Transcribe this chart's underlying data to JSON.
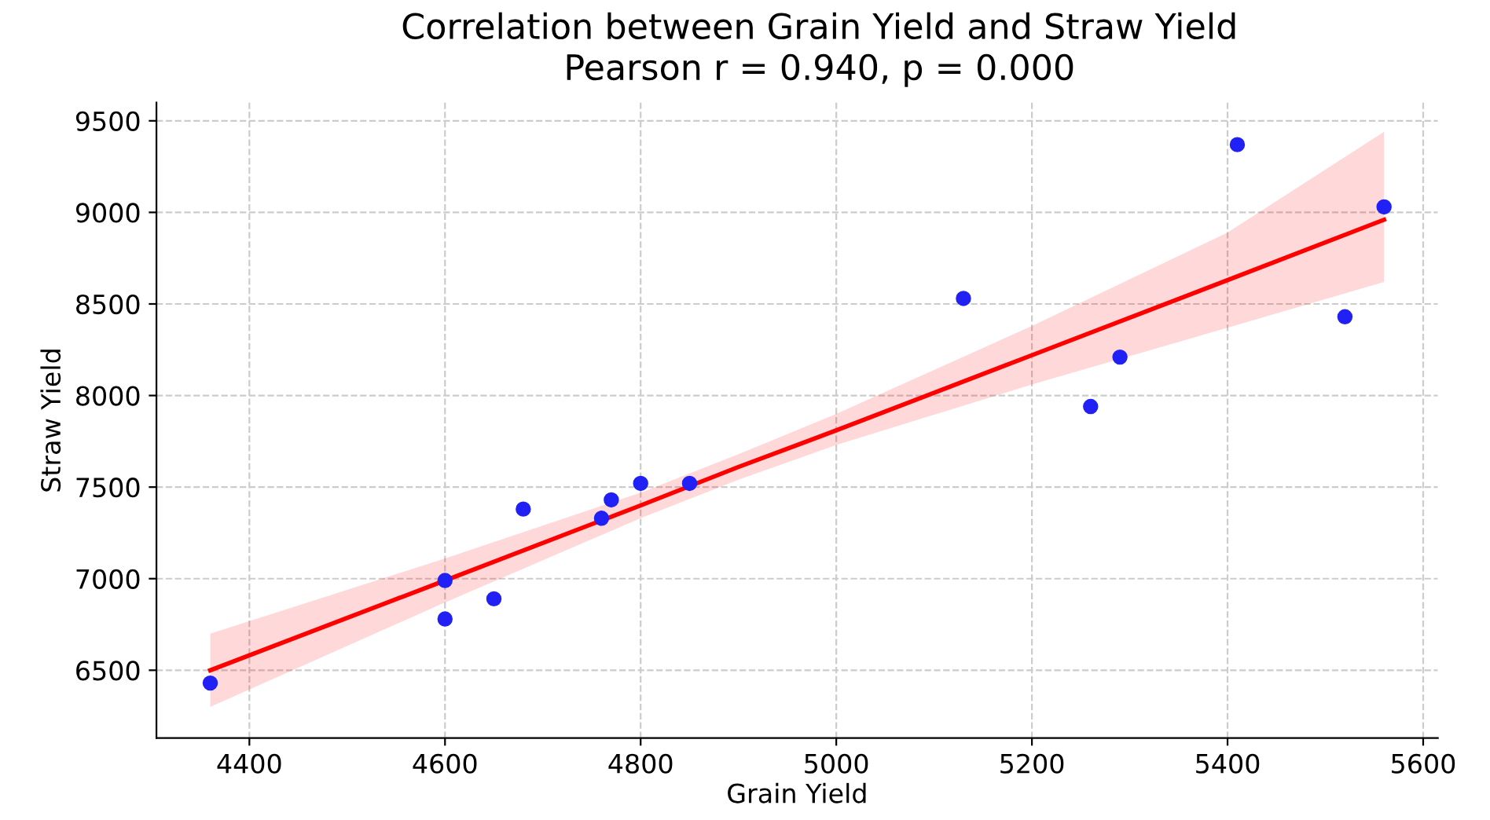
{
  "chart_data": {
    "type": "scatter",
    "title": "Correlation between Grain Yield and Straw Yield",
    "subtitle": "Pearson r = 0.940, p = 0.000",
    "xlabel": "Grain Yield",
    "ylabel": "Straw Yield",
    "xlim": [
      4305,
      5615
    ],
    "ylim": [
      6130,
      9600
    ],
    "xticks": [
      4400,
      4600,
      4800,
      5000,
      5200,
      5400,
      5600
    ],
    "yticks": [
      6500,
      7000,
      7500,
      8000,
      8500,
      9000,
      9500
    ],
    "grid": true,
    "series": [
      {
        "color": "#2121f5",
        "marker": "circle",
        "x": [
          4360,
          4600,
          4600,
          4650,
          4680,
          4760,
          4770,
          4800,
          4850,
          5130,
          5260,
          5290,
          5410,
          5520,
          5560
        ],
        "values": [
          6430,
          6990,
          6780,
          6890,
          7380,
          7330,
          7430,
          7520,
          7520,
          8530,
          7940,
          8210,
          9370,
          8430,
          9030
        ]
      },
      {
        "type": "line",
        "color": "#ff0000",
        "marker": "none",
        "line_style": "solid",
        "x": [
          4360,
          4600,
          4800,
          4900,
          5000,
          5200,
          5400,
          5560
        ],
        "values": [
          6500,
          6990,
          7400,
          7610,
          7810,
          8220,
          8630,
          8960
        ],
        "lower": [
          6300,
          6870,
          7330,
          7540,
          7730,
          8060,
          8370,
          8620
        ],
        "upper": [
          6700,
          7110,
          7470,
          7680,
          7900,
          8380,
          8890,
          9440
        ]
      }
    ]
  }
}
